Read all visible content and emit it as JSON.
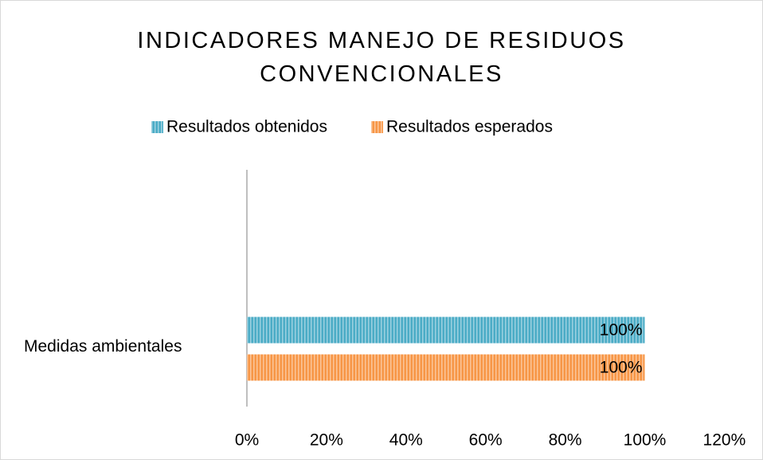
{
  "chart_data": {
    "type": "barh",
    "title": "INDICADORES MANEJO DE RESIDUOS CONVENCIONALES",
    "categories": [
      "Medidas ambientales"
    ],
    "series": [
      {
        "name": "Resultados obtenidos",
        "color": "#4bacc6",
        "values": [
          100
        ],
        "value_labels": [
          "100%"
        ]
      },
      {
        "name": "Resultados esperados",
        "color": "#f79646",
        "values": [
          100
        ],
        "value_labels": [
          "100%"
        ]
      }
    ],
    "xlim": [
      0,
      120
    ],
    "xticks": [
      {
        "value": 0,
        "label": "0%"
      },
      {
        "value": 20,
        "label": "20%"
      },
      {
        "value": 40,
        "label": "40%"
      },
      {
        "value": 60,
        "label": "60%"
      },
      {
        "value": 80,
        "label": "80%"
      },
      {
        "value": 100,
        "label": "100%"
      },
      {
        "value": 120,
        "label": "120%"
      }
    ],
    "grid": false,
    "legend": "top"
  }
}
